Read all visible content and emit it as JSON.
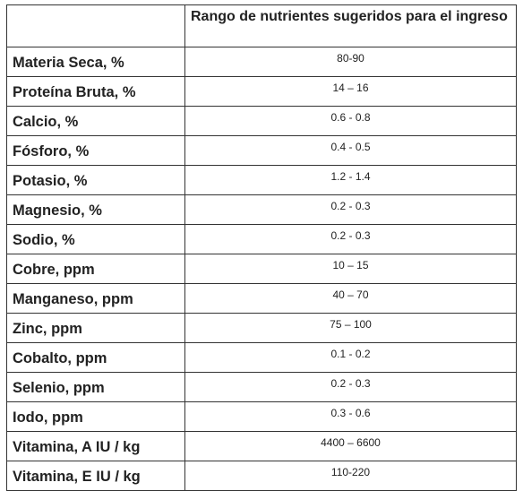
{
  "table": {
    "column_header": "Rango de nutrientes sugeridos para el ingreso",
    "rows": [
      [
        "Materia Seca, %",
        "80-90"
      ],
      [
        "Proteína Bruta, %",
        "14 – 16"
      ],
      [
        "Calcio, %",
        "0.6 - 0.8"
      ],
      [
        "Fósforo, %",
        "0.4 - 0.5"
      ],
      [
        "Potasio, %",
        "1.2 - 1.4"
      ],
      [
        "Magnesio, %",
        "0.2 - 0.3"
      ],
      [
        "Sodio, %",
        "0.2 - 0.3"
      ],
      [
        "Cobre, ppm",
        "10 – 15"
      ],
      [
        "Manganeso, ppm",
        "40 – 70"
      ],
      [
        "Zinc, ppm",
        "75 – 100"
      ],
      [
        "Cobalto, ppm",
        "0.1 - 0.2"
      ],
      [
        "Selenio, ppm",
        "0.2 - 0.3"
      ],
      [
        "Iodo, ppm",
        "0.3 - 0.6"
      ],
      [
        "Vitamina, A IU / kg",
        "4400 – 6600"
      ],
      [
        "Vitamina, E IU / kg",
        "110-220"
      ]
    ]
  }
}
